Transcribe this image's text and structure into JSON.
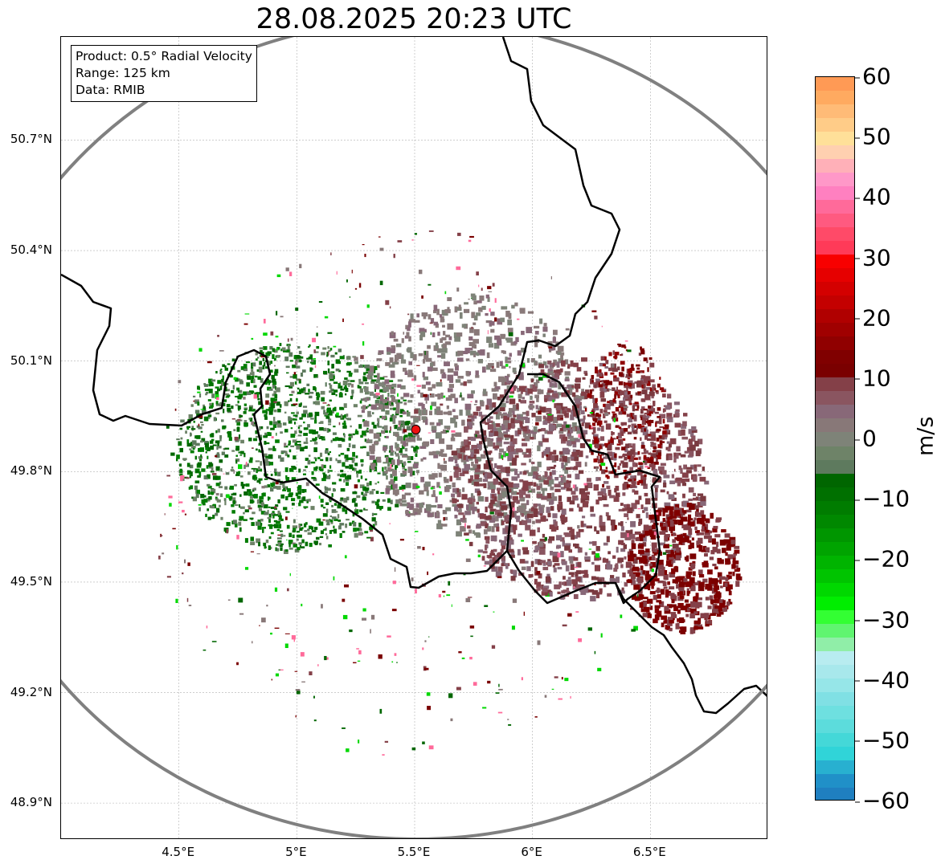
{
  "title": "28.08.2025 20:23 UTC",
  "info_box": {
    "product": "Product: 0.5° Radial Velocity",
    "range": "Range: 125 km",
    "data": "Data: RMIB"
  },
  "map": {
    "lon_range": [
      4.0,
      7.0
    ],
    "lat_range": [
      48.8,
      50.98
    ],
    "lat_ticks": [
      "50.7°N",
      "50.4°N",
      "50.1°N",
      "49.8°N",
      "49.5°N",
      "49.2°N",
      "48.9°N"
    ],
    "lat_tick_values": [
      50.7,
      50.4,
      50.1,
      49.8,
      49.5,
      49.2,
      48.9
    ],
    "lon_ticks": [
      "4.5°E",
      "5°E",
      "5.5°E",
      "6°E",
      "6.5°E"
    ],
    "lon_tick_values": [
      4.5,
      5.0,
      5.5,
      6.0,
      6.5
    ],
    "radar_site": {
      "lon": 5.505,
      "lat": 49.914
    },
    "range_ring_color": "#808080",
    "border_color": "#000000",
    "gridlines": true
  },
  "colorbar": {
    "label": "m/s",
    "ticks": [
      "60",
      "50",
      "40",
      "30",
      "20",
      "10",
      "0",
      "−10",
      "−20",
      "−30",
      "−40",
      "−50",
      "−60"
    ],
    "tick_values": [
      60,
      50,
      40,
      30,
      20,
      10,
      0,
      -10,
      -20,
      -30,
      -40,
      -50,
      -60
    ],
    "min": -60,
    "max": 60,
    "colors_top_to_bottom": [
      "#ff9a55",
      "#ffaa60",
      "#ffbb77",
      "#ffcc88",
      "#ffe099",
      "#ffd0b0",
      "#ffb0b8",
      "#ff98c8",
      "#ff80c0",
      "#ff6a9a",
      "#ff5a80",
      "#ff4a68",
      "#ff3a58",
      "#f80000",
      "#e60000",
      "#d40000",
      "#c40000",
      "#b00000",
      "#a00000",
      "#900000",
      "#800000",
      "#7a0000",
      "#844048",
      "#8a5560",
      "#886878",
      "#887878",
      "#7e8378",
      "#6e8368",
      "#5e7a5e",
      "#006600",
      "#007000",
      "#007c00",
      "#008800",
      "#009600",
      "#00a400",
      "#00b400",
      "#00c400",
      "#00d800",
      "#00ee00",
      "#33ff33",
      "#60f570",
      "#90eea8",
      "#b8ecf0",
      "#a8e8ec",
      "#96e6e8",
      "#80e0e4",
      "#6ee0e0",
      "#5cdcdc",
      "#44d8d8",
      "#30d4d8",
      "#28b0d0",
      "#2090c8",
      "#1f7fc0"
    ]
  }
}
